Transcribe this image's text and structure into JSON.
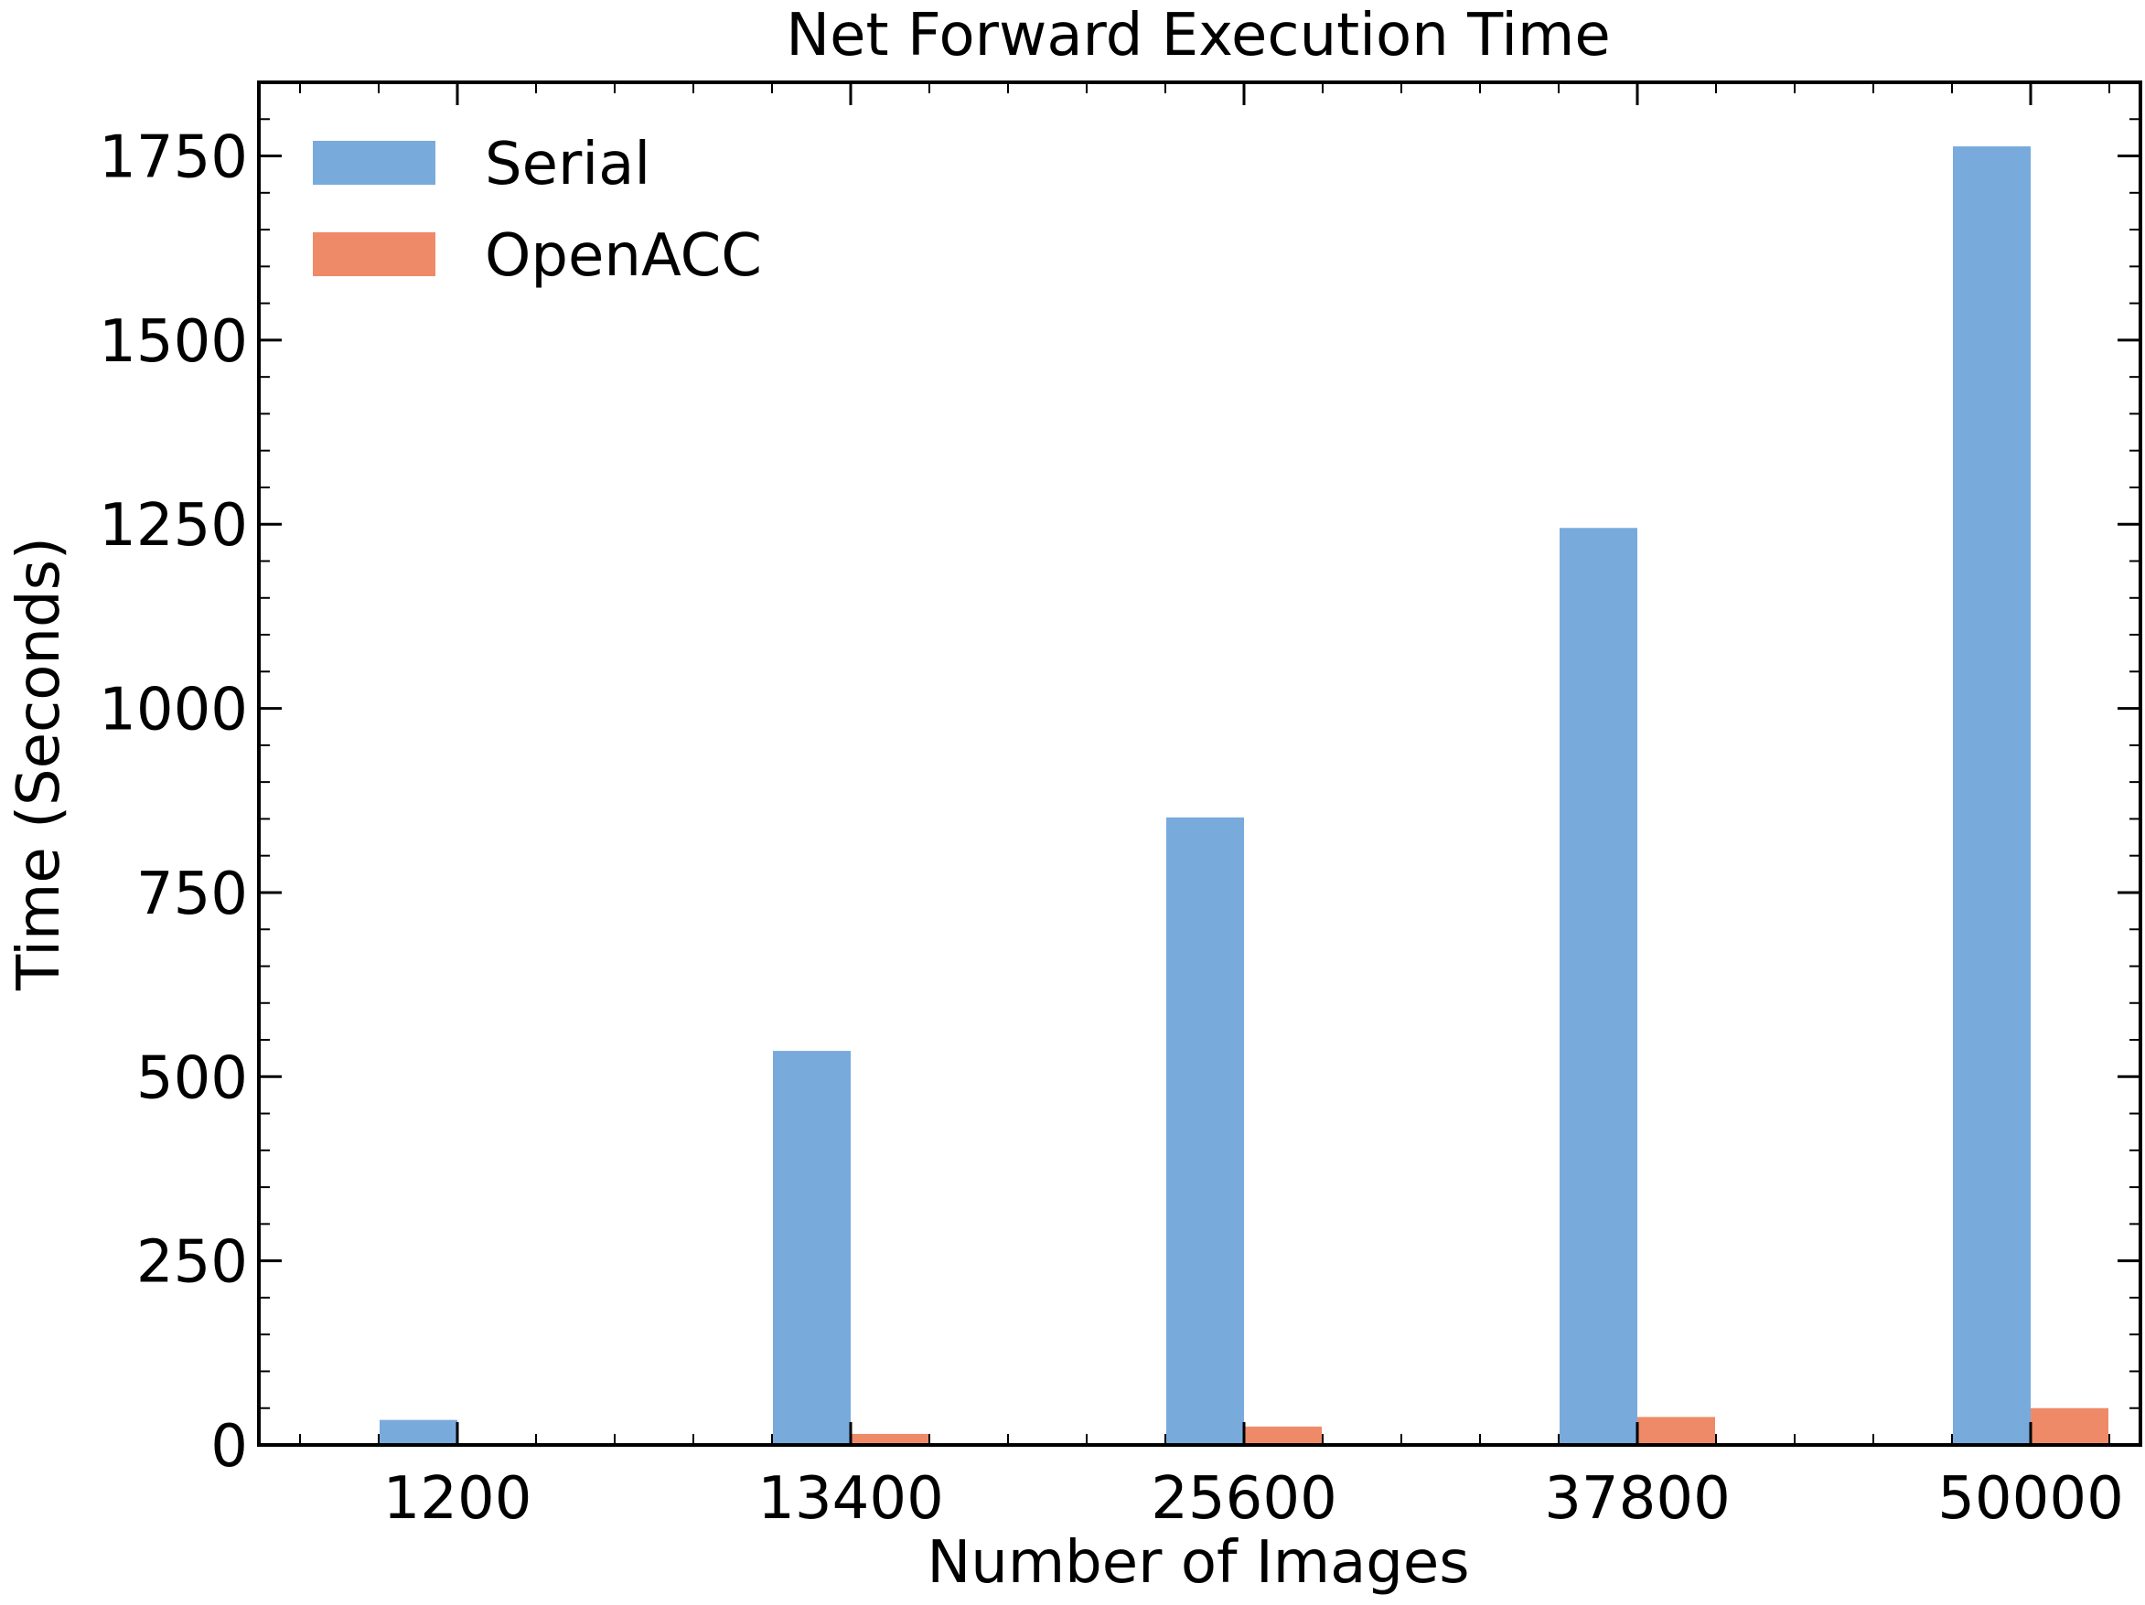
{
  "chart_data": {
    "type": "bar",
    "title": "Net Forward Execution Time",
    "xlabel": "Number of Images",
    "ylabel": "Time (Seconds)",
    "categories": [
      "1200",
      "13400",
      "25600",
      "37800",
      "50000"
    ],
    "series": [
      {
        "name": "Serial",
        "color": "#78aadc",
        "values": [
          34,
          535,
          852,
          1245,
          1763
        ]
      },
      {
        "name": "OpenACC",
        "color": "#ef8a68",
        "values": [
          1,
          15,
          25,
          38,
          50
        ]
      }
    ],
    "ylim": [
      0,
      1850
    ],
    "yticks": [
      0,
      250,
      500,
      750,
      1000,
      1250,
      1500,
      1750
    ],
    "grid": false,
    "legend_position": "top-left"
  }
}
